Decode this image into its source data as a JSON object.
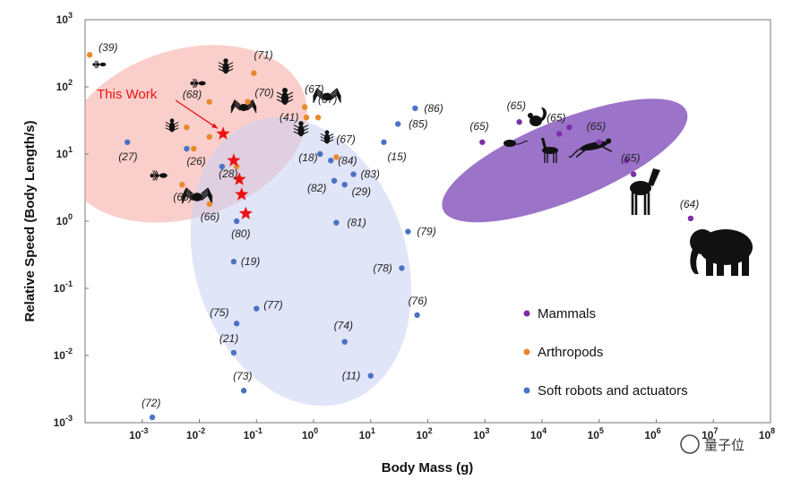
{
  "chart_data": {
    "type": "scatter",
    "title": "",
    "xlabel": "Body Mass (g)",
    "ylabel": "Relative Speed (Body Length/s)",
    "x_scale": "log",
    "y_scale": "log",
    "xlim": [
      0.0001,
      100000000
    ],
    "ylim": [
      0.001,
      1000
    ],
    "x_ticks": [
      {
        "exp": -3,
        "label": "10",
        "sup": "-3"
      },
      {
        "exp": -2,
        "label": "10",
        "sup": "-2"
      },
      {
        "exp": -1,
        "label": "10",
        "sup": "-1"
      },
      {
        "exp": 0,
        "label": "10",
        "sup": "0"
      },
      {
        "exp": 1,
        "label": "10",
        "sup": "1"
      },
      {
        "exp": 2,
        "label": "10",
        "sup": "2"
      },
      {
        "exp": 3,
        "label": "10",
        "sup": "3"
      },
      {
        "exp": 4,
        "label": "10",
        "sup": "4"
      },
      {
        "exp": 5,
        "label": "10",
        "sup": "5"
      },
      {
        "exp": 6,
        "label": "10",
        "sup": "6"
      },
      {
        "exp": 7,
        "label": "10",
        "sup": "7"
      },
      {
        "exp": 8,
        "label": "10",
        "sup": "8"
      }
    ],
    "y_ticks": [
      {
        "exp": -3,
        "label": "10",
        "sup": "-3"
      },
      {
        "exp": -2,
        "label": "10",
        "sup": "-2"
      },
      {
        "exp": -1,
        "label": "10",
        "sup": "-1"
      },
      {
        "exp": 0,
        "label": "10",
        "sup": "0"
      },
      {
        "exp": 1,
        "label": "10",
        "sup": "1"
      },
      {
        "exp": 2,
        "label": "10",
        "sup": "2"
      },
      {
        "exp": 3,
        "label": "10",
        "sup": "3"
      }
    ],
    "legend": {
      "position": "bottom-right",
      "entries": [
        {
          "name": "Mammals",
          "color": "#7b2fa8"
        },
        {
          "name": "Arthropods",
          "color": "#e8892c"
        },
        {
          "name": "Soft robots and actuators",
          "color": "#4a72c4"
        }
      ]
    },
    "regions": [
      {
        "group": "Arthropods",
        "color": "#f6a8a0",
        "opacity": 0.55,
        "cx": 0.0056,
        "cy": 20,
        "rx_decades": 2.2,
        "ry_decades": 1.25,
        "rotate": 18
      },
      {
        "group": "Soft robots and actuators",
        "color": "#c9cff3",
        "opacity": 0.55,
        "cx": 0.6,
        "cy": 0.25,
        "rx_decades": 1.85,
        "ry_decades": 2.2,
        "rotate": 18
      },
      {
        "group": "Mammals",
        "color": "#8a5bbf",
        "opacity": 0.85,
        "cx": 25000,
        "cy": 8,
        "rx_decades": 2.3,
        "ry_decades": 0.6,
        "rotate": 22
      }
    ],
    "series": [
      {
        "name": "Mammals",
        "color": "#7b2fa8",
        "points": [
          {
            "x": 900,
            "y": 15,
            "ref": "(65)"
          },
          {
            "x": 4000,
            "y": 30,
            "ref": "(65)"
          },
          {
            "x": 20000,
            "y": 20,
            "ref": "(65)"
          },
          {
            "x": 30000,
            "y": 25,
            "ref": ""
          },
          {
            "x": 100000,
            "y": 15,
            "ref": "(65)"
          },
          {
            "x": 300000,
            "y": 8,
            "ref": ""
          },
          {
            "x": 400000,
            "y": 5,
            "ref": "(65)"
          },
          {
            "x": 4000000,
            "y": 1.1,
            "ref": "(64)"
          }
        ]
      },
      {
        "name": "Arthropods",
        "color": "#e8892c",
        "points": [
          {
            "x": 0.00012,
            "y": 300,
            "ref": "(39)"
          },
          {
            "x": 0.015,
            "y": 60,
            "ref": "(68)"
          },
          {
            "x": 0.006,
            "y": 25,
            "ref": ""
          },
          {
            "x": 0.015,
            "y": 18,
            "ref": ""
          },
          {
            "x": 0.008,
            "y": 12,
            "ref": "(26)"
          },
          {
            "x": 0.005,
            "y": 3.5,
            "ref": "(66)"
          },
          {
            "x": 0.015,
            "y": 1.8,
            "ref": "(66)"
          },
          {
            "x": 0.045,
            "y": 6.5,
            "ref": "(28)"
          },
          {
            "x": 0.09,
            "y": 160,
            "ref": "(71)"
          },
          {
            "x": 0.07,
            "y": 60,
            "ref": "(70)"
          },
          {
            "x": 0.7,
            "y": 50,
            "ref": "(67)"
          },
          {
            "x": 1.2,
            "y": 35,
            "ref": "(67)"
          },
          {
            "x": 0.75,
            "y": 35,
            "ref": "(41)"
          },
          {
            "x": 2.5,
            "y": 9,
            "ref": "(67)"
          }
        ]
      },
      {
        "name": "Soft robots and actuators",
        "color": "#4a72c4",
        "points": [
          {
            "x": 0.00055,
            "y": 15,
            "ref": "(27)"
          },
          {
            "x": 0.006,
            "y": 12,
            "ref": ""
          },
          {
            "x": 0.025,
            "y": 6.5,
            "ref": ""
          },
          {
            "x": 0.045,
            "y": 1.0,
            "ref": "(80)"
          },
          {
            "x": 0.04,
            "y": 0.25,
            "ref": "(19)"
          },
          {
            "x": 0.045,
            "y": 0.03,
            "ref": "(75)"
          },
          {
            "x": 0.1,
            "y": 0.05,
            "ref": "(77)"
          },
          {
            "x": 0.04,
            "y": 0.011,
            "ref": "(21)"
          },
          {
            "x": 0.06,
            "y": 0.003,
            "ref": "(73)"
          },
          {
            "x": 0.0015,
            "y": 0.0012,
            "ref": "(72)"
          },
          {
            "x": 2.5,
            "y": 0.95,
            "ref": "(81)"
          },
          {
            "x": 1.3,
            "y": 10,
            "ref": "(18)"
          },
          {
            "x": 2.0,
            "y": 8,
            "ref": "(84)"
          },
          {
            "x": 5.0,
            "y": 5,
            "ref": "(83)"
          },
          {
            "x": 2.3,
            "y": 4,
            "ref": "(82)"
          },
          {
            "x": 3.5,
            "y": 3.5,
            "ref": "(29)"
          },
          {
            "x": 17,
            "y": 15,
            "ref": "(15)"
          },
          {
            "x": 30,
            "y": 28,
            "ref": "(85)"
          },
          {
            "x": 60,
            "y": 48,
            "ref": "(86)"
          },
          {
            "x": 45,
            "y": 0.7,
            "ref": "(79)"
          },
          {
            "x": 35,
            "y": 0.2,
            "ref": "(78)"
          },
          {
            "x": 65,
            "y": 0.04,
            "ref": "(76)"
          },
          {
            "x": 3.5,
            "y": 0.016,
            "ref": "(74)"
          },
          {
            "x": 10,
            "y": 0.005,
            "ref": "(11)"
          }
        ]
      },
      {
        "name": "This Work",
        "color": "#ee1111",
        "marker": "star",
        "points": [
          {
            "x": 0.026,
            "y": 20
          },
          {
            "x": 0.04,
            "y": 8
          },
          {
            "x": 0.05,
            "y": 4.2
          },
          {
            "x": 0.055,
            "y": 2.5
          },
          {
            "x": 0.065,
            "y": 1.3
          }
        ]
      }
    ],
    "annotations": [
      {
        "text": "This Work",
        "color": "#ee1111",
        "arrow_to": {
          "x": 0.026,
          "y": 20
        }
      }
    ]
  },
  "silhouettes": {
    "arthropods": [
      "ant-icon",
      "beetle-icon",
      "spider-icon",
      "cockroach-icon",
      "mite-icon"
    ],
    "mammals": [
      "squirrel-icon",
      "mouse-icon",
      "deer-icon",
      "cheetah-icon",
      "horse-icon",
      "elephant-icon"
    ]
  },
  "watermark": {
    "text": "量子位"
  }
}
